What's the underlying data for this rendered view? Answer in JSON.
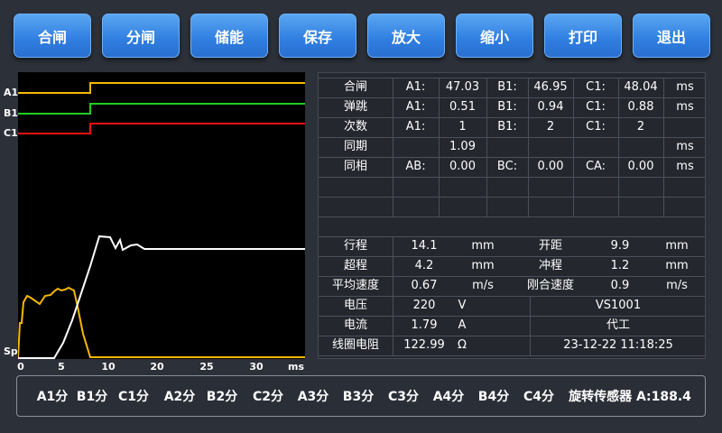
{
  "buttons": [
    "合闸",
    "分闸",
    "储能",
    "保存",
    "放大",
    "缩小",
    "打印",
    "退出"
  ],
  "trace_labels": [
    "A1",
    "B1",
    "C1",
    "Sp"
  ],
  "trace_colors": {
    "A1": "#f5b800",
    "B1": "#22cc22",
    "C1": "#ee1111",
    "Sp": "#ffffff",
    "current": "#f5b800"
  },
  "x_ticks": [
    "0",
    "5",
    "10",
    "20",
    "25",
    "30",
    "ms"
  ],
  "top_table": [
    [
      "合闸",
      "A1:",
      "47.03",
      "B1:",
      "46.95",
      "C1:",
      "48.04",
      "ms"
    ],
    [
      "弹跳",
      "A1:",
      "0.51",
      "B1:",
      "0.94",
      "C1:",
      "0.88",
      "ms"
    ],
    [
      "次数",
      "A1:",
      "1",
      "B1:",
      "2",
      "C1:",
      "2",
      ""
    ],
    [
      "同期",
      "",
      "1.09",
      "",
      "",
      "",
      "",
      "ms"
    ],
    [
      "同相",
      "AB:",
      "0.00",
      "BC:",
      "0.00",
      "CA:",
      "0.00",
      "ms"
    ]
  ],
  "params": [
    [
      "行程",
      "14.1",
      "mm",
      "开距",
      "9.9",
      "mm"
    ],
    [
      "超程",
      "4.2",
      "mm",
      "冲程",
      "1.2",
      "mm"
    ],
    [
      "平均速度",
      "0.67",
      "m/s",
      "刚合速度",
      "0.9",
      "m/s"
    ]
  ],
  "electrical": [
    [
      "电压",
      "220",
      "V",
      "VS1001"
    ],
    [
      "电流",
      "1.79",
      "A",
      "代工"
    ],
    [
      "线圈电阻",
      "122.99",
      "Ω",
      "23-12-22 11:18:25"
    ]
  ],
  "bottom_items": [
    "A1分",
    "B1分",
    "C1分",
    "A2分",
    "B2分",
    "C2分",
    "A3分",
    "B3分",
    "C3分",
    "A4分",
    "B4分",
    "C4分",
    "旋转传感器 A:188.4"
  ]
}
